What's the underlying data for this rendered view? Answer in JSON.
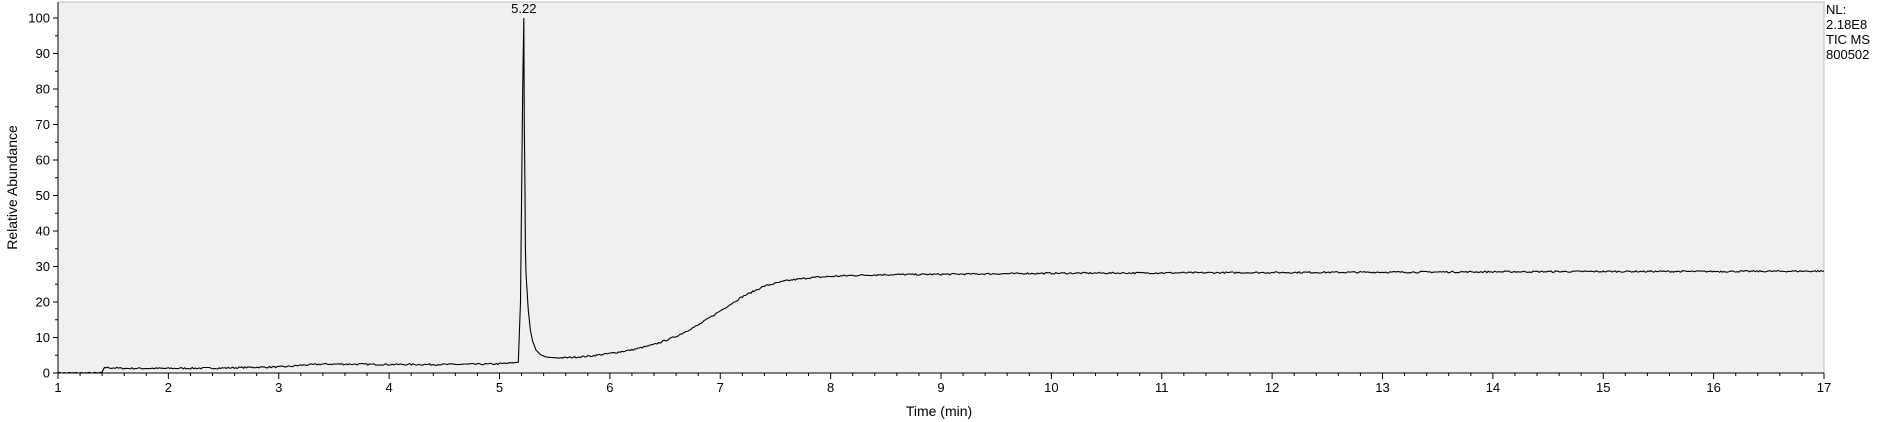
{
  "info": {
    "nl_label": "NL:",
    "nl_value": "2.18E8",
    "scan_filter": "TIC  MS",
    "file_name": "800502"
  },
  "chart_data": {
    "type": "line",
    "title": "",
    "xlabel": "Time (min)",
    "ylabel": "Relative Abundance",
    "xlim": [
      1,
      17
    ],
    "ylim": [
      0,
      100
    ],
    "xticks": [
      1,
      2,
      3,
      4,
      5,
      6,
      7,
      8,
      9,
      10,
      11,
      12,
      13,
      14,
      15,
      16,
      17
    ],
    "yticks": [
      0,
      10,
      20,
      30,
      40,
      50,
      60,
      70,
      80,
      90,
      100
    ],
    "grid": false,
    "plot_background": "#f0f0f0",
    "line_color": "#000000",
    "peak_annotations": [
      {
        "label": "5.22",
        "x": 5.22,
        "y": 100
      }
    ],
    "series": [
      {
        "x": [
          1.0,
          1.4,
          1.42,
          1.45,
          1.6,
          2.0,
          2.5,
          2.75,
          3.0,
          3.12,
          3.2,
          3.4,
          3.6,
          4.0,
          4.5,
          4.9,
          5.0,
          5.1,
          5.17,
          5.19,
          5.21,
          5.22,
          5.225,
          5.23,
          5.235,
          5.24,
          5.26,
          5.28,
          5.3,
          5.33,
          5.37,
          5.42,
          5.5,
          5.6,
          5.8,
          6.0,
          6.2,
          6.4,
          6.6,
          6.8,
          7.0,
          7.2,
          7.4,
          7.6,
          7.8,
          8.0,
          8.2,
          8.5,
          9.0,
          10.0,
          11.0,
          12.0,
          13.0,
          14.0,
          15.0,
          16.0,
          17.0
        ],
        "y": [
          0.0,
          0.0,
          1.6,
          1.5,
          1.3,
          1.3,
          1.4,
          1.6,
          1.7,
          1.9,
          2.2,
          2.5,
          2.5,
          2.4,
          2.4,
          2.5,
          2.6,
          2.8,
          3.0,
          20.0,
          80.0,
          100.0,
          70.0,
          54.0,
          35.0,
          28.0,
          18.0,
          12.0,
          9.0,
          6.5,
          5.2,
          4.5,
          4.3,
          4.3,
          4.7,
          5.5,
          6.5,
          8.0,
          10.3,
          13.5,
          17.5,
          21.5,
          24.5,
          26.0,
          26.8,
          27.2,
          27.5,
          27.7,
          27.8,
          28.1,
          28.2,
          28.3,
          28.4,
          28.5,
          28.6,
          28.6,
          28.7
        ]
      }
    ]
  }
}
